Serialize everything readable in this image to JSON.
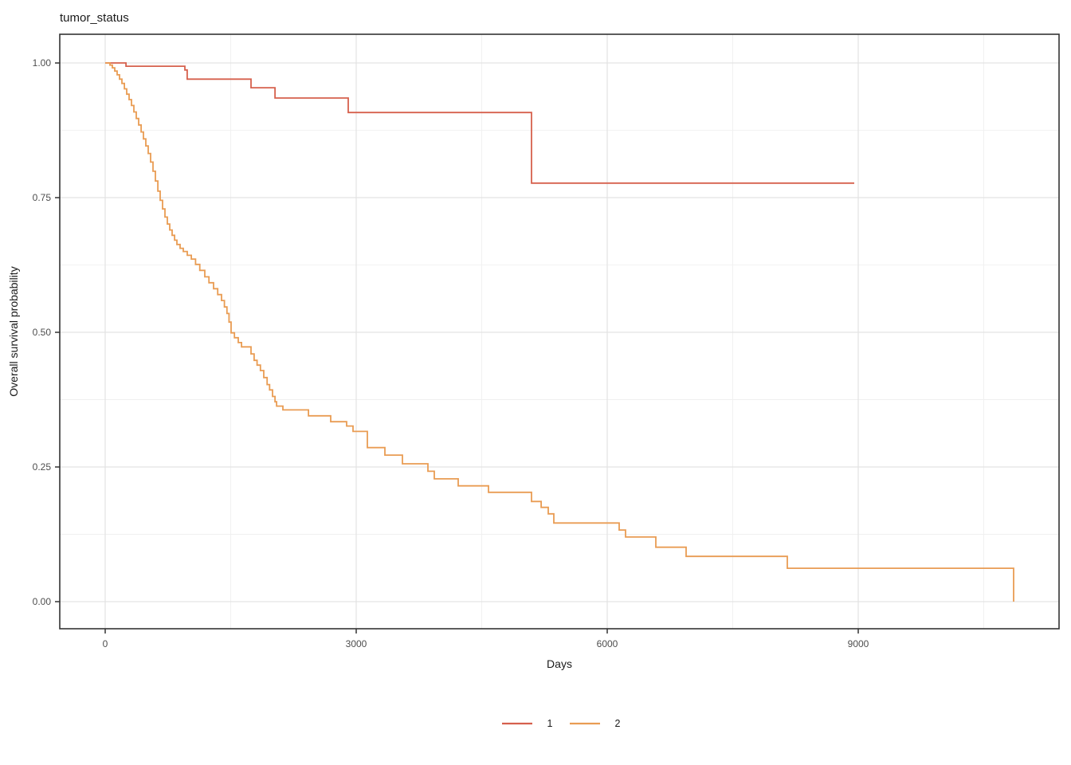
{
  "chart_data": {
    "type": "line",
    "variant": "kaplan-meier-step",
    "title": "tumor_status",
    "xlabel": "Days",
    "ylabel": "Overall survival probability",
    "xlim": [
      -543,
      11400
    ],
    "ylim": [
      -0.0503,
      1.0533
    ],
    "x_ticks": {
      "major": [
        {
          "v": 0,
          "label": "0"
        },
        {
          "v": 3000,
          "label": "3000"
        },
        {
          "v": 6000,
          "label": "6000"
        },
        {
          "v": 9000,
          "label": "9000"
        }
      ],
      "minor": [
        1500,
        4500,
        7500,
        10500
      ]
    },
    "y_ticks": {
      "major": [
        {
          "v": 0.0,
          "label": "0.00"
        },
        {
          "v": 0.25,
          "label": "0.25"
        },
        {
          "v": 0.5,
          "label": "0.50"
        },
        {
          "v": 0.75,
          "label": "0.75"
        },
        {
          "v": 1.0,
          "label": "1.00"
        }
      ],
      "minor": [
        0.125,
        0.375,
        0.625,
        0.875
      ]
    },
    "grid": {
      "major_color": "#e3e3e3",
      "minor_color": "#f0f0f0",
      "visible": true
    },
    "panel": {
      "border_color": "#333333",
      "background": "#ffffff"
    },
    "legend": {
      "position": "bottom",
      "items": [
        {
          "label": "1",
          "color": "#D6604D"
        },
        {
          "label": "2",
          "color": "#E99C53"
        }
      ]
    },
    "series": [
      {
        "name": "1",
        "color": "#D6604D",
        "end_day": 8952,
        "points": [
          [
            0,
            1.0
          ],
          [
            248,
            0.994
          ],
          [
            952,
            0.987
          ],
          [
            980,
            0.97
          ],
          [
            1743,
            0.954
          ],
          [
            2029,
            0.935
          ],
          [
            2905,
            0.908
          ],
          [
            5095,
            0.777
          ]
        ]
      },
      {
        "name": "2",
        "color": "#E99C53",
        "end_day": 10857,
        "points": [
          [
            0,
            1.0
          ],
          [
            57,
            0.996
          ],
          [
            86,
            0.991
          ],
          [
            114,
            0.985
          ],
          [
            143,
            0.978
          ],
          [
            171,
            0.97
          ],
          [
            200,
            0.962
          ],
          [
            229,
            0.952
          ],
          [
            257,
            0.942
          ],
          [
            286,
            0.932
          ],
          [
            314,
            0.921
          ],
          [
            343,
            0.909
          ],
          [
            371,
            0.897
          ],
          [
            400,
            0.885
          ],
          [
            429,
            0.872
          ],
          [
            457,
            0.859
          ],
          [
            486,
            0.846
          ],
          [
            514,
            0.832
          ],
          [
            543,
            0.816
          ],
          [
            571,
            0.799
          ],
          [
            600,
            0.781
          ],
          [
            629,
            0.762
          ],
          [
            657,
            0.745
          ],
          [
            686,
            0.729
          ],
          [
            714,
            0.714
          ],
          [
            743,
            0.701
          ],
          [
            771,
            0.69
          ],
          [
            800,
            0.68
          ],
          [
            829,
            0.671
          ],
          [
            857,
            0.663
          ],
          [
            895,
            0.656
          ],
          [
            933,
            0.65
          ],
          [
            981,
            0.643
          ],
          [
            1029,
            0.636
          ],
          [
            1080,
            0.626
          ],
          [
            1130,
            0.615
          ],
          [
            1190,
            0.603
          ],
          [
            1240,
            0.592
          ],
          [
            1295,
            0.581
          ],
          [
            1345,
            0.57
          ],
          [
            1390,
            0.559
          ],
          [
            1425,
            0.547
          ],
          [
            1455,
            0.535
          ],
          [
            1480,
            0.519
          ],
          [
            1505,
            0.499
          ],
          [
            1545,
            0.49
          ],
          [
            1590,
            0.481
          ],
          [
            1629,
            0.473
          ],
          [
            1743,
            0.46
          ],
          [
            1780,
            0.448
          ],
          [
            1815,
            0.439
          ],
          [
            1855,
            0.429
          ],
          [
            1895,
            0.416
          ],
          [
            1935,
            0.403
          ],
          [
            1965,
            0.393
          ],
          [
            2000,
            0.381
          ],
          [
            2029,
            0.371
          ],
          [
            2048,
            0.363
          ],
          [
            2124,
            0.356
          ],
          [
            2429,
            0.345
          ],
          [
            2695,
            0.334
          ],
          [
            2886,
            0.326
          ],
          [
            2962,
            0.316
          ],
          [
            3133,
            0.286
          ],
          [
            3343,
            0.272
          ],
          [
            3552,
            0.256
          ],
          [
            3857,
            0.242
          ],
          [
            3933,
            0.228
          ],
          [
            4219,
            0.215
          ],
          [
            4581,
            0.203
          ],
          [
            5095,
            0.186
          ],
          [
            5210,
            0.175
          ],
          [
            5295,
            0.163
          ],
          [
            5362,
            0.146
          ],
          [
            6143,
            0.133
          ],
          [
            6219,
            0.12
          ],
          [
            6581,
            0.101
          ],
          [
            6943,
            0.084
          ],
          [
            8152,
            0.062
          ],
          [
            10857,
            0.0
          ]
        ]
      }
    ]
  }
}
